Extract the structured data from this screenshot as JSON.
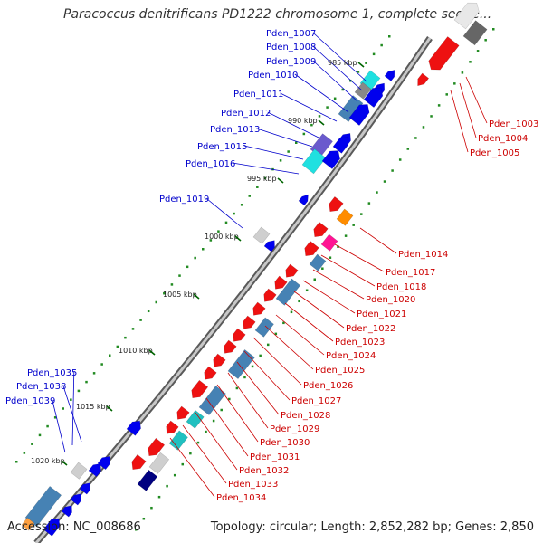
{
  "title": "Paracoccus denitrificans PD1222 chromosome 1, complete seque...",
  "accession": "Accession: NC_008686",
  "summary": "Topology: circular; Length: 2,852,282 bp; Genes: 2,850",
  "colors": {
    "backbone": "#8a8a8a",
    "forward_label": "#0000cc",
    "reverse_label": "#cc0000",
    "tick": "#228B22"
  },
  "kbp_ticks": [
    "985 kbp",
    "990 kbp",
    "995 kbp",
    "1000 kbp",
    "1005 kbp",
    "1010 kbp",
    "1015 kbp",
    "1020 kbp"
  ],
  "forward_labels": [
    "Pden_1007",
    "Pden_1008",
    "Pden_1009",
    "Pden_1010",
    "Pden_1011",
    "Pden_1012",
    "Pden_1013",
    "Pden_1015",
    "Pden_1016",
    "Pden_1019",
    "Pden_1035",
    "Pden_1038",
    "Pden_1039"
  ],
  "reverse_labels": [
    "Pden_1003",
    "Pden_1004",
    "Pden_1005",
    "Pden_1014",
    "Pden_1017",
    "Pden_1018",
    "Pden_1020",
    "Pden_1021",
    "Pden_1022",
    "Pden_1023",
    "Pden_1024",
    "Pden_1025",
    "Pden_1026",
    "Pden_1027",
    "Pden_1028",
    "Pden_1029",
    "Pden_1030",
    "Pden_1031",
    "Pden_1032",
    "Pden_1033",
    "Pden_1034"
  ]
}
